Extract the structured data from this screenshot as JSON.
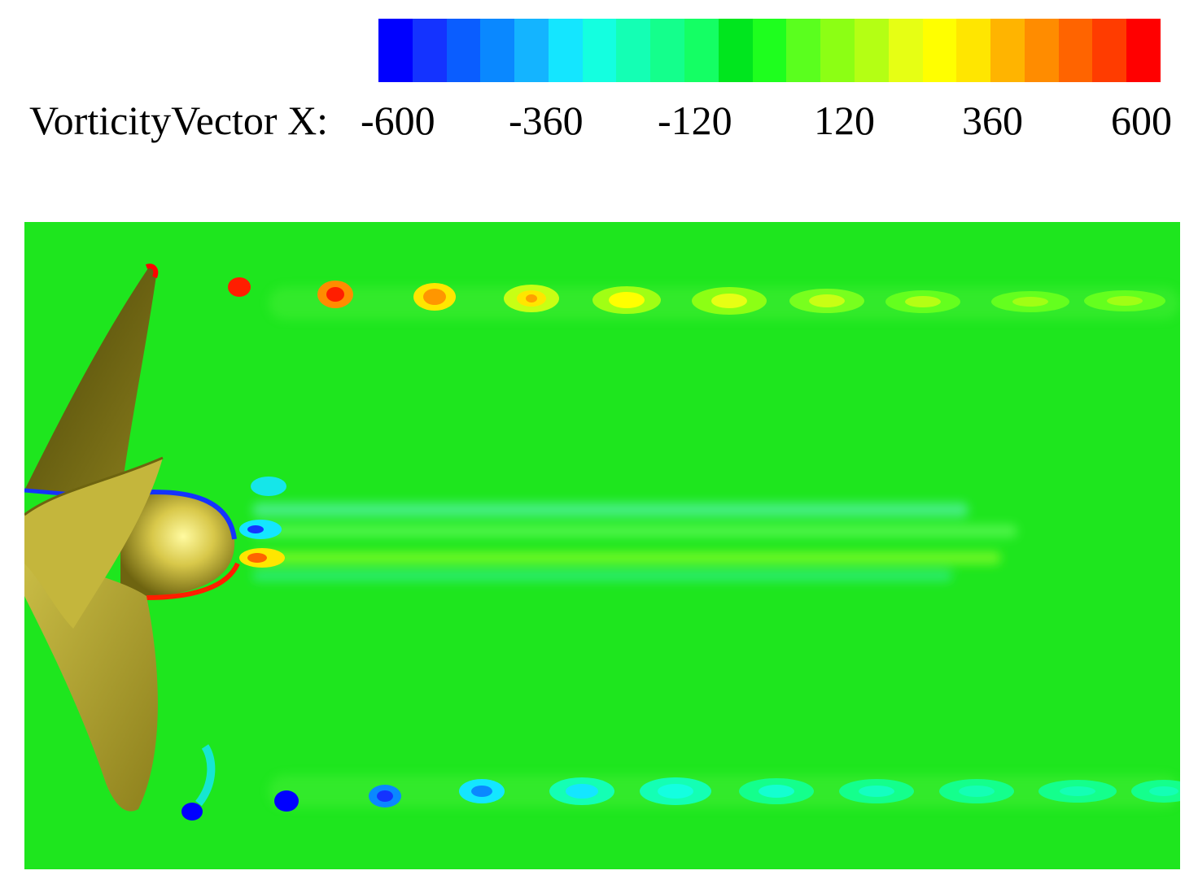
{
  "legend": {
    "title": "VorticityVector X:",
    "ticks": [
      "-600",
      "-360",
      "-120",
      "120",
      "360",
      "600"
    ],
    "colors": [
      "#0000ff",
      "#1433ff",
      "#0a5dff",
      "#0a88ff",
      "#14b4ff",
      "#14e6ff",
      "#14ffe0",
      "#14ffb4",
      "#14ff8c",
      "#14ff64",
      "#00e61e",
      "#1eff1e",
      "#5aff1e",
      "#8cff14",
      "#b4ff14",
      "#e6ff14",
      "#ffff00",
      "#ffe600",
      "#ffb400",
      "#ff8c00",
      "#ff6400",
      "#ff3c00",
      "#ff0000"
    ]
  },
  "plot": {
    "background_color": "#1ee61e",
    "propeller_color": "#b4a828"
  }
}
